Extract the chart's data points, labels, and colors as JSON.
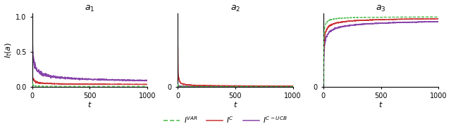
{
  "color_var": "#44bb44",
  "color_c": "#cc3333",
  "color_cubcb": "#8844aa",
  "n_points": 1001,
  "seed": 7,
  "figsize": [
    6.4,
    1.87
  ],
  "dpi": 100
}
